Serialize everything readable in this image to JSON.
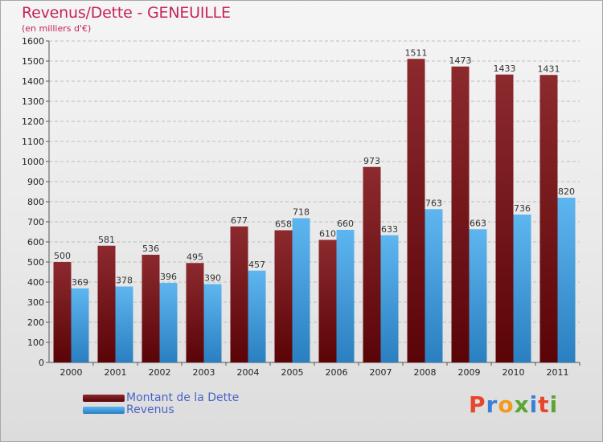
{
  "header": {
    "title": "Revenus/Dette - GENEUILLE",
    "subtitle": "(en milliers d'€)"
  },
  "legend": {
    "dette_label": "Montant de la Dette",
    "revenus_label": "Revenus"
  },
  "logo": {
    "text": "Proxiti",
    "colors": [
      "#e8452c",
      "#3b7fd6",
      "#f29a1f",
      "#5aa632",
      "#3b7fd6",
      "#e8452c",
      "#5aa632"
    ]
  },
  "colors": {
    "dette_top": "#8c2a2e",
    "dette_bottom": "#5a0408",
    "revenus_top": "#5eb6f0",
    "revenus_bottom": "#2a7fc0",
    "title": "#c4245a",
    "legend_text": "#4b63c9"
  },
  "chart_data": {
    "type": "bar",
    "title": "Revenus/Dette - GENEUILLE",
    "subtitle": "(en milliers d'€)",
    "categories": [
      "2000",
      "2001",
      "2002",
      "2003",
      "2004",
      "2005",
      "2006",
      "2007",
      "2008",
      "2009",
      "2010",
      "2011"
    ],
    "series": [
      {
        "name": "Montant de la Dette",
        "values": [
          500,
          581,
          536,
          495,
          677,
          658,
          610,
          973,
          1511,
          1473,
          1433,
          1431
        ]
      },
      {
        "name": "Revenus",
        "values": [
          369,
          378,
          396,
          390,
          457,
          718,
          660,
          633,
          763,
          663,
          736,
          820
        ]
      }
    ],
    "ylim": [
      0,
      1600
    ],
    "ytick_step": 100,
    "xlabel": "",
    "ylabel": "",
    "grid": true,
    "legend_position": "bottom-left",
    "data_labels": true
  }
}
